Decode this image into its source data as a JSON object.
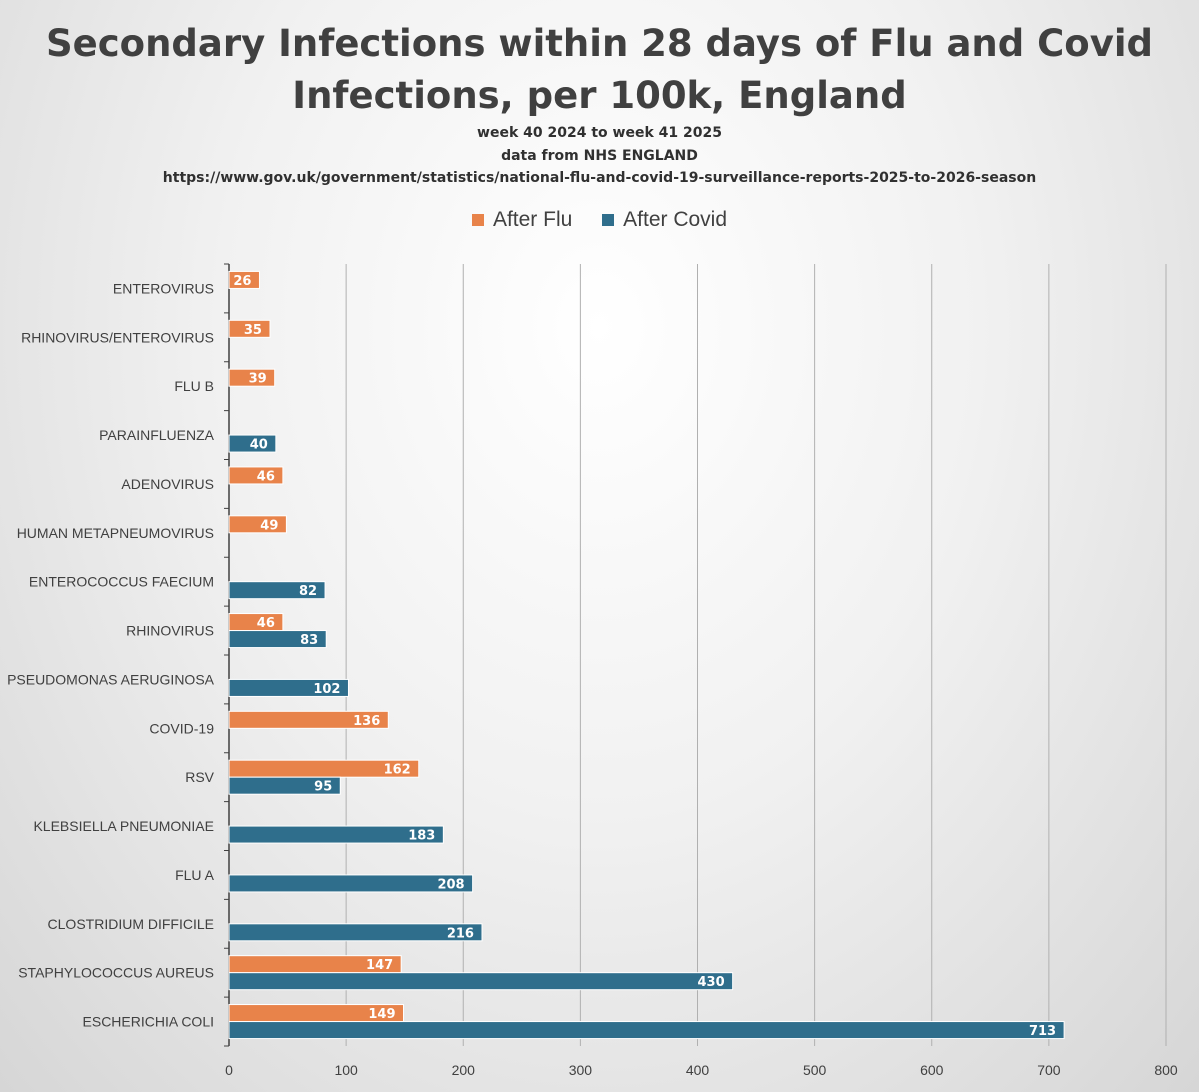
{
  "chart_data": {
    "type": "bar",
    "orientation": "horizontal",
    "title": "Secondary Infections within 28 days of Flu and Covid Infections, per 100k, England",
    "title_lines": [
      "Secondary Infections within 28 days of Flu and Covid",
      "Infections, per 100k, England"
    ],
    "subtitle_lines": [
      "week 40 2024 to week 41 2025",
      "data from NHS ENGLAND",
      "https://www.gov.uk/government/statistics/national-flu-and-covid-19-surveillance-reports-2025-to-2026-season"
    ],
    "xlim": [
      0,
      800
    ],
    "xticks": [
      0,
      100,
      200,
      300,
      400,
      500,
      600,
      700,
      800
    ],
    "grid": true,
    "legend_position": "top",
    "categories": [
      "ENTEROVIRUS",
      "RHINOVIRUS/ENTEROVIRUS",
      "FLU B",
      "PARAINFLUENZA",
      "ADENOVIRUS",
      "HUMAN METAPNEUMOVIRUS",
      "ENTEROCOCCUS FAECIUM",
      "RHINOVIRUS",
      "PSEUDOMONAS AERUGINOSA",
      "COVID-19",
      "RSV",
      "KLEBSIELLA PNEUMONIAE",
      "FLU A",
      "CLOSTRIDIUM DIFFICILE",
      "STAPHYLOCOCCUS AUREUS",
      "ESCHERICHIA COLI"
    ],
    "series": [
      {
        "name": "After Flu",
        "color": "#E8834A",
        "values": [
          26,
          35,
          39,
          null,
          46,
          49,
          null,
          46,
          null,
          136,
          162,
          null,
          null,
          null,
          147,
          149
        ]
      },
      {
        "name": "After Covid",
        "color": "#2F6E8C",
        "values": [
          null,
          null,
          null,
          40,
          null,
          null,
          82,
          83,
          102,
          null,
          95,
          183,
          208,
          216,
          430,
          713
        ]
      }
    ]
  }
}
